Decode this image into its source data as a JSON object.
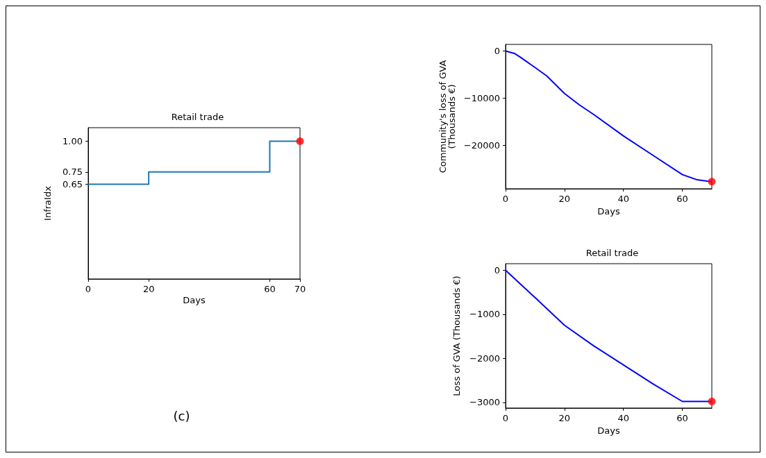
{
  "chart_data": [
    {
      "type": "step",
      "title": "Retail trade",
      "xlabel": "Days",
      "ylabel": "InfraIdx",
      "xlim": [
        0,
        70
      ],
      "ylim": [
        -0.12,
        1.11
      ],
      "xticks": [
        0,
        20,
        60,
        70
      ],
      "yticks": [
        0.65,
        0.75,
        {
          "value": 1,
          "label": "1.00"
        }
      ],
      "grid": false,
      "marker": "none",
      "annotations": [
        "(c)"
      ],
      "series": [
        {
          "color": "#1f77b4",
          "x": [
            0,
            20,
            60,
            70
          ],
          "values": [
            0.65,
            0.75,
            1.0,
            1.0
          ]
        },
        {
          "type": "scatter",
          "marker": "circle",
          "color": "#ff0000",
          "x": [
            70
          ],
          "values": [
            1.0
          ]
        }
      ]
    },
    {
      "type": "line",
      "xlabel": "Days",
      "ylabel": "Community's loss of GVA\n(Thousands €)",
      "xlim": [
        0,
        70
      ],
      "ylim": [
        -29200,
        1400
      ],
      "xticks": [
        0,
        20,
        40,
        60
      ],
      "yticks": [
        0,
        {
          "value": -10000,
          "label": "−10000"
        },
        {
          "value": -20000,
          "label": "−20000"
        }
      ],
      "grid": false,
      "marker": "none",
      "series": [
        {
          "color": "#0000ff",
          "x": [
            0,
            3,
            5,
            10,
            14,
            20,
            25,
            30,
            40,
            50,
            60,
            65,
            70
          ],
          "values": [
            0,
            -500,
            -1300,
            -3500,
            -5300,
            -9000,
            -11400,
            -13500,
            -18000,
            -22100,
            -26200,
            -27300,
            -27700
          ]
        },
        {
          "type": "scatter",
          "marker": "circle",
          "color": "#ff0000",
          "x": [
            70
          ],
          "values": [
            -27700
          ]
        }
      ]
    },
    {
      "type": "line",
      "title": "Retail trade",
      "xlabel": "Days",
      "ylabel": "Loss of GVA (Thousands €)",
      "xlim": [
        0,
        70
      ],
      "ylim": [
        -3130,
        150
      ],
      "xticks": [
        0,
        20,
        40,
        60
      ],
      "yticks": [
        0,
        {
          "value": -1000,
          "label": "−1000"
        },
        {
          "value": -2000,
          "label": "−2000"
        },
        {
          "value": -3000,
          "label": "−3000"
        }
      ],
      "grid": false,
      "marker": "none",
      "series": [
        {
          "color": "#0000ff",
          "x": [
            0,
            10,
            20,
            30,
            40,
            50,
            60,
            70
          ],
          "values": [
            0,
            -620,
            -1250,
            -1720,
            -2150,
            -2580,
            -2980,
            -2980
          ]
        },
        {
          "type": "scatter",
          "marker": "circle",
          "color": "#ff0000",
          "x": [
            70
          ],
          "values": [
            -2980
          ]
        }
      ]
    }
  ]
}
